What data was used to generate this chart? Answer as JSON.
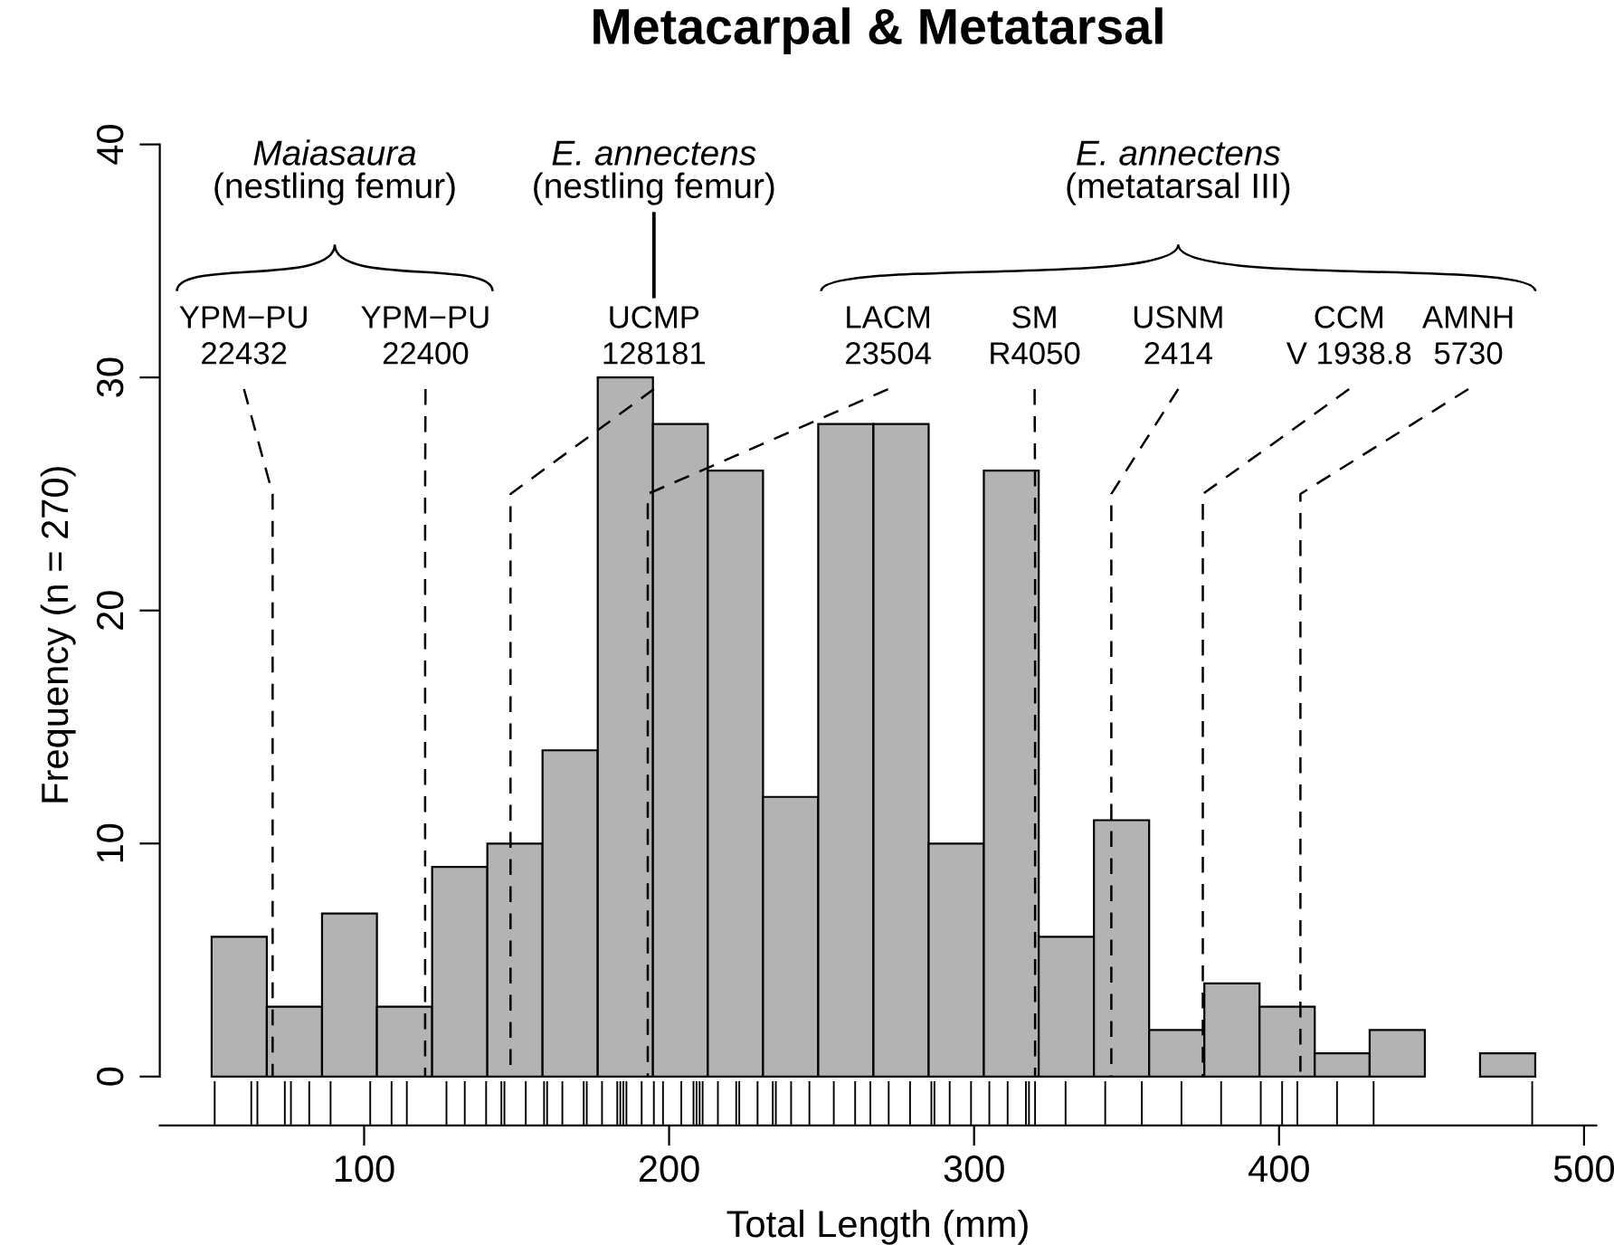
{
  "chart_data": {
    "type": "histogram",
    "title": "Metacarpal & Metatarsal",
    "xlabel": "Total Length (mm)",
    "ylabel": "Frequency (n = 270)",
    "series": [
      {
        "color": "#b3b3b3",
        "bins": [
          50,
          68.1,
          86.2,
          104.2,
          122.3,
          140.4,
          158.5,
          176.6,
          194.7,
          212.7,
          230.8,
          248.9,
          267.0,
          285.1,
          303.2,
          321.2,
          339.3,
          357.4,
          375.5,
          393.6,
          411.7,
          429.7,
          447.8,
          465.9,
          484.0
        ],
        "values": [
          6,
          3,
          7,
          3,
          9,
          10,
          14,
          30,
          28,
          26,
          12,
          28,
          28,
          10,
          26,
          6,
          11,
          2,
          4,
          3,
          1,
          2,
          0,
          1
        ]
      },
      {
        "type": "bar",
        "color": "#000000",
        "base": [
          -2.1,
          -2.1,
          -2.1,
          -2.1,
          -2.1,
          -2.1,
          -2.1,
          -2.1,
          -2.1,
          -2.1,
          -2.1,
          -2.1,
          -2.1,
          -2.1,
          -2.1,
          -2.1,
          -2.1,
          -2.1,
          -2.1,
          -2.1,
          -2.1,
          -2.1,
          -2.1,
          -2.1,
          -2.1,
          -2.1,
          -2.1,
          -2.1,
          -2.1,
          -2.1,
          -2.1,
          -2.1,
          -2.1,
          -2.1,
          -2.1,
          -2.1,
          -2.1,
          -2.1,
          -2.1,
          -2.1,
          -2.1,
          -2.1,
          -2.1,
          -2.1,
          -2.1,
          -2.1,
          -2.1,
          -2.1,
          -2.1,
          -2.1,
          -2.1,
          -2.1,
          -2.1,
          -2.1,
          -2.1,
          -2.1,
          -2.1,
          -2.1,
          -2.1,
          -2.1,
          -2.1,
          -2.1,
          -2.1,
          -2.1,
          -2.1,
          -2.1,
          -2.1
        ],
        "x": [
          51,
          63,
          65,
          74,
          76,
          82,
          89,
          102,
          109,
          114,
          127,
          133,
          140,
          145,
          146,
          153,
          159,
          160,
          165,
          172,
          173,
          178,
          183,
          184,
          185,
          186,
          191,
          195,
          198,
          204,
          208,
          209,
          210,
          211,
          216,
          222,
          223,
          229,
          234,
          235,
          240,
          246,
          254,
          261,
          266,
          272,
          279,
          286,
          287,
          292,
          299,
          305,
          311,
          317,
          318,
          320,
          330,
          343,
          355,
          368,
          381,
          394,
          401,
          406,
          419,
          431,
          483
        ],
        "values": [
          1.9,
          1.9,
          1.9,
          1.9,
          1.9,
          1.9,
          1.9,
          1.9,
          1.9,
          1.9,
          1.9,
          1.9,
          1.9,
          1.9,
          1.9,
          1.9,
          1.9,
          1.9,
          1.9,
          1.9,
          1.9,
          1.9,
          1.9,
          1.9,
          1.9,
          1.9,
          1.9,
          1.9,
          1.9,
          1.9,
          1.9,
          1.9,
          1.9,
          1.9,
          1.9,
          1.9,
          1.9,
          1.9,
          1.9,
          1.9,
          1.9,
          1.9,
          1.9,
          1.9,
          1.9,
          1.9,
          1.9,
          1.9,
          1.9,
          1.9,
          1.9,
          1.9,
          1.9,
          1.9,
          1.9,
          1.9,
          1.9,
          1.9,
          1.9,
          1.9,
          1.9,
          1.9,
          1.9,
          1.9,
          1.9,
          1.9,
          1.9
        ]
      }
    ],
    "xlim": [
      33,
      504
    ],
    "xticks": [
      100,
      200,
      300,
      400,
      500
    ],
    "ylim": [
      -2.1,
      40
    ],
    "yticks": [
      0,
      10,
      20,
      30,
      40
    ],
    "ref_lines": [
      {
        "axis": "x",
        "value": 70,
        "line_style": "dashed",
        "label": "YPM−PU\n22432"
      },
      {
        "axis": "x",
        "value": 120,
        "line_style": "dashed",
        "label": "YPM−PU\n22400"
      },
      {
        "axis": "x",
        "value": 148,
        "line_style": "dashed",
        "label": "UCMP\n128181"
      },
      {
        "axis": "x",
        "value": 193,
        "line_style": "dashed",
        "label": "LACM\n23504"
      },
      {
        "axis": "x",
        "value": 320,
        "line_style": "dashed",
        "label": "SM\nR4050"
      },
      {
        "axis": "x",
        "value": 345,
        "line_style": "dashed",
        "label": "USNM\n2414"
      },
      {
        "axis": "x",
        "value": 375,
        "line_style": "dashed",
        "label": "CCM\nV 1938.8"
      },
      {
        "axis": "x",
        "value": 407,
        "line_style": "dashed",
        "label": "AMNH\n5730"
      }
    ],
    "annotations": [
      "Maiasaura\n(nestling femur)",
      "E. annectens\n(nestling femur)",
      "E. annectens\n(metatarsal III)"
    ],
    "grid": false,
    "legend": false
  }
}
